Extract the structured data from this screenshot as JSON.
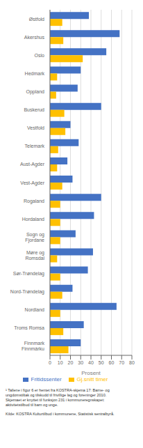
{
  "chart_data": {
    "type": "bar",
    "orientation": "horizontal",
    "categories": [
      "Østfold",
      "Akershus",
      "Oslo",
      "Hedmark",
      "Oppland",
      "Buskerud",
      "Vestfold",
      "Telemark",
      "Aust-Agder",
      "Vest-Agder",
      "Rogaland",
      "Hordaland",
      "Sogn og\nFjordane",
      "Møre og\nRomsdal",
      "Sør-Trøndelag",
      "Nord-Trøndelag",
      "Nordland",
      "Troms Romsa",
      "Finnmark\nFinnmárku"
    ],
    "series": [
      {
        "name": "Fritidssenter",
        "color": "#4472C4",
        "values": [
          38,
          68,
          55,
          30,
          27,
          50,
          20,
          28,
          17,
          22,
          50,
          43,
          25,
          42,
          37,
          22,
          65,
          33,
          30
        ]
      },
      {
        "name": "Gj.snitt timer",
        "color": "#FFC000",
        "values": [
          12,
          13,
          32,
          7,
          6,
          14,
          15,
          8,
          7,
          12,
          10,
          10,
          10,
          7,
          10,
          12,
          10,
          13,
          18
        ]
      }
    ],
    "x_label": "Prosent",
    "xlim": [
      0,
      80
    ],
    "xticks": [
      0,
      10,
      20,
      30,
      40,
      50,
      60,
      70,
      80
    ],
    "grid": true,
    "legend": "bottom",
    "annotations": [
      "¹ Tallene i figur 6 er hentet fra KOSTRA-skjema 17: Barne- og",
      "ungdomstiltak og tilskudd til frivillige lag og foreninger 2010.",
      "Skjemaet er knyttet til funksjon 231 i kommuneregnskapet:",
      "aktivitetstilbud til barn og unge.",
      "Kilde: KOSTRA Kulturtilbud i kommunene, Statistisk sentralbyrå."
    ]
  }
}
